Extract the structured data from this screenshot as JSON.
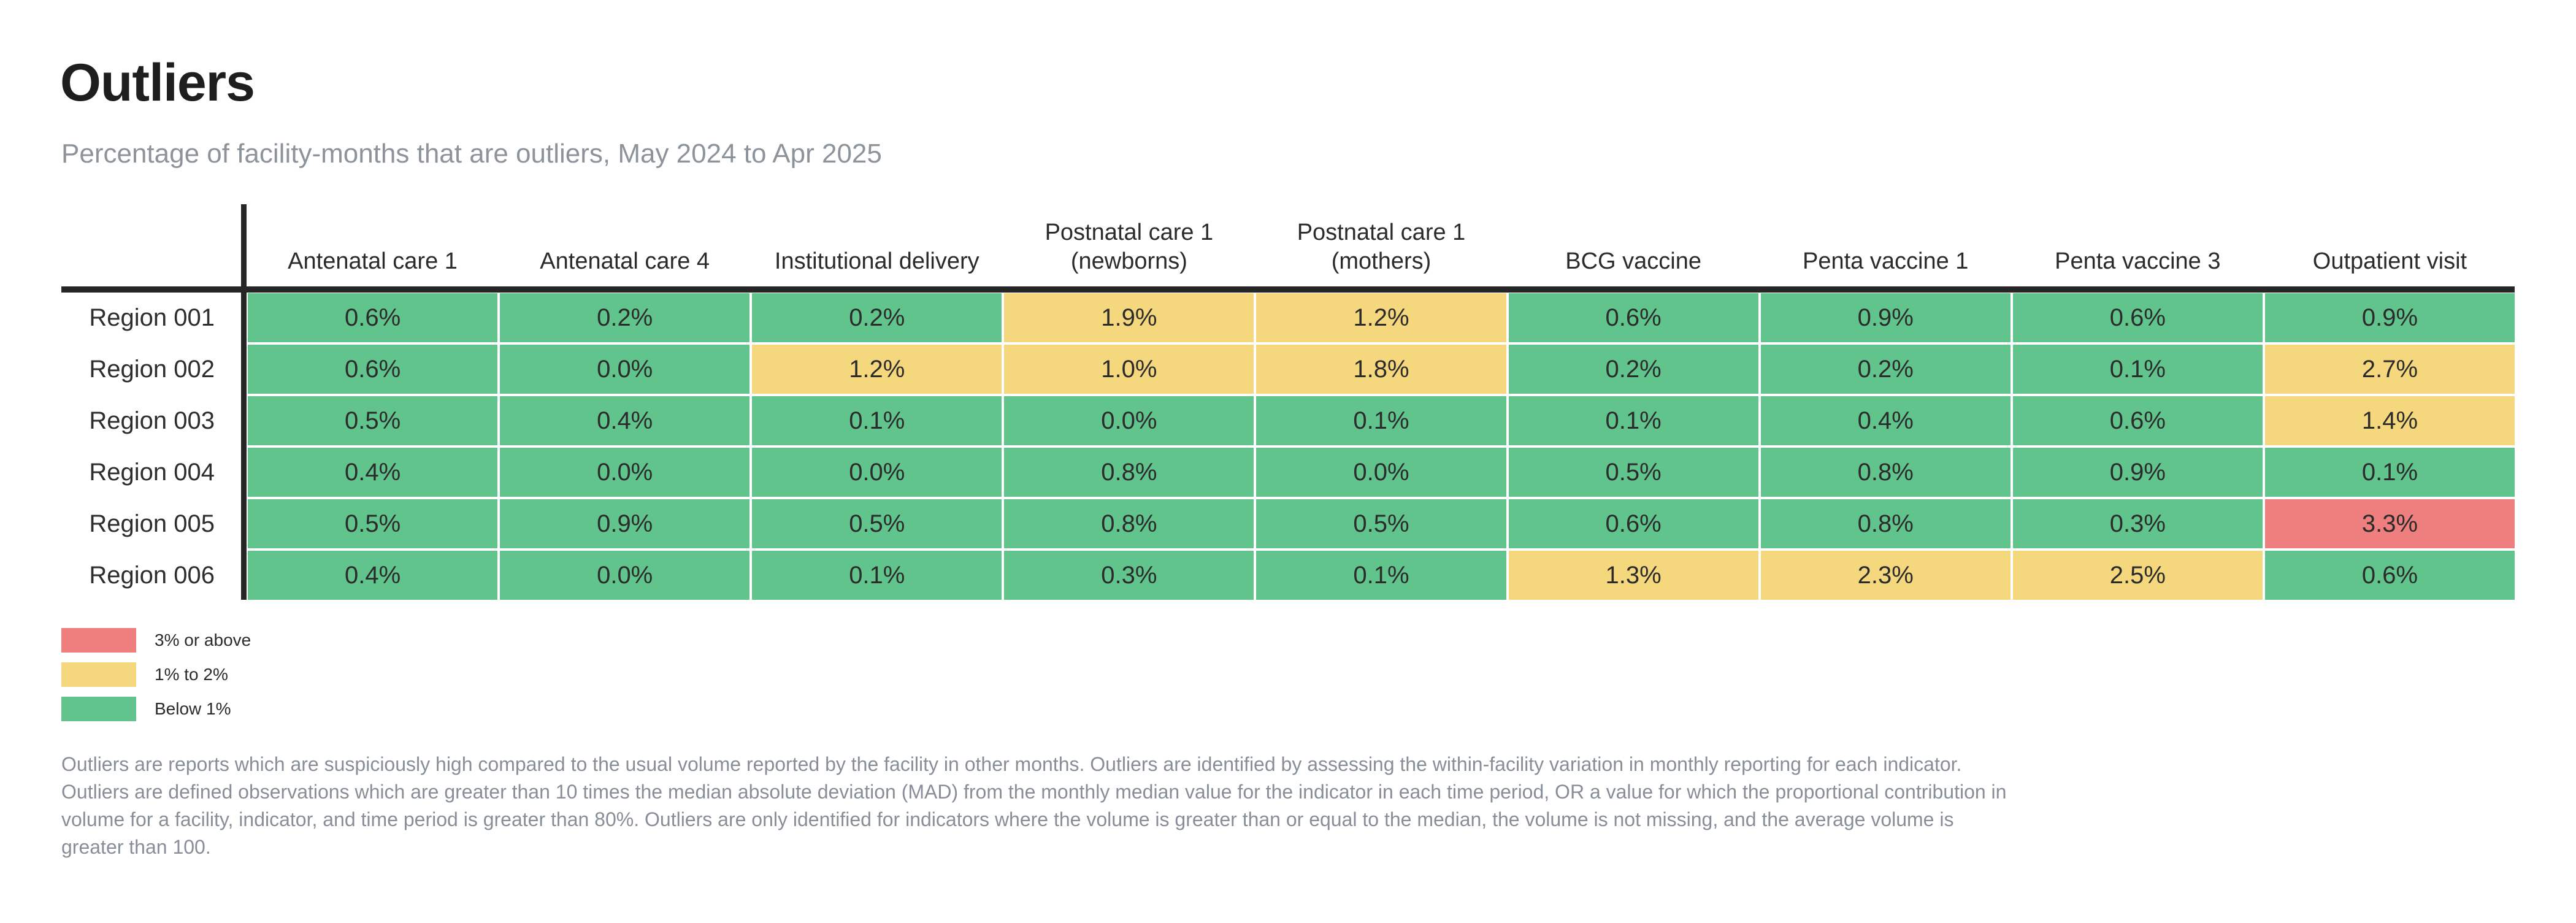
{
  "colors": {
    "green": "#61c48c",
    "yellow": "#f5d77d",
    "red": "#ef7f7f",
    "ink": "#262626",
    "muted_text": "#8c939b",
    "footnote_text": "#878e97"
  },
  "chart_data": {
    "type": "heatmap",
    "title": "Outliers",
    "subtitle": "Percentage of facility-months that are outliers, May 2024 to Apr 2025",
    "unit": "%",
    "value_format": "one decimal + %",
    "columns": [
      "Antenatal care 1",
      "Antenatal care 4",
      "Institutional delivery",
      "Postnatal care 1\n(newborns)",
      "Postnatal care 1\n(mothers)",
      "BCG vaccine",
      "Penta vaccine 1",
      "Penta vaccine 3",
      "Outpatient visit"
    ],
    "rows": [
      "Region 001",
      "Region 002",
      "Region 003",
      "Region 004",
      "Region 005",
      "Region 006"
    ],
    "values": [
      [
        0.6,
        0.2,
        0.2,
        1.9,
        1.2,
        0.6,
        0.9,
        0.6,
        0.9
      ],
      [
        0.6,
        0.0,
        1.2,
        1.0,
        1.8,
        0.2,
        0.2,
        0.1,
        2.7
      ],
      [
        0.5,
        0.4,
        0.1,
        0.0,
        0.1,
        0.1,
        0.4,
        0.6,
        1.4
      ],
      [
        0.4,
        0.0,
        0.0,
        0.8,
        0.0,
        0.5,
        0.8,
        0.9,
        0.1
      ],
      [
        0.5,
        0.9,
        0.5,
        0.8,
        0.5,
        0.6,
        0.8,
        0.3,
        3.3
      ],
      [
        0.4,
        0.0,
        0.1,
        0.3,
        0.1,
        1.3,
        2.3,
        2.5,
        0.6
      ]
    ],
    "color_rules": [
      {
        "label": "3% or above",
        "min": 3,
        "color_key": "red"
      },
      {
        "label": "1% to 2%",
        "min": 1,
        "color_key": "yellow"
      },
      {
        "label": "Below 1%",
        "min": 0,
        "color_key": "green"
      }
    ],
    "legend_position": "bottom-left",
    "grid": false
  },
  "legend": {
    "items": [
      {
        "color": "red",
        "label": "3% or above"
      },
      {
        "color": "yellow",
        "label": "1% to 2%"
      },
      {
        "color": "green",
        "label": "Below 1%"
      }
    ]
  },
  "footer": {
    "lines": [
      "Outliers are reports which are suspiciously high compared to the usual volume reported by the facility in other months. Outliers are identified by assessing the within-facility variation in monthly reporting for each indicator.",
      "Outliers are defined observations which are greater than 10 times the median absolute deviation (MAD) from the monthly median value for the indicator in each time period, OR a value for which the proportional contribution in",
      "volume for a facility, indicator, and time period is greater than 80%. Outliers are only identified for indicators where the volume is greater than or equal to the median, the volume is not missing, and the average volume is",
      "greater than 100."
    ]
  }
}
